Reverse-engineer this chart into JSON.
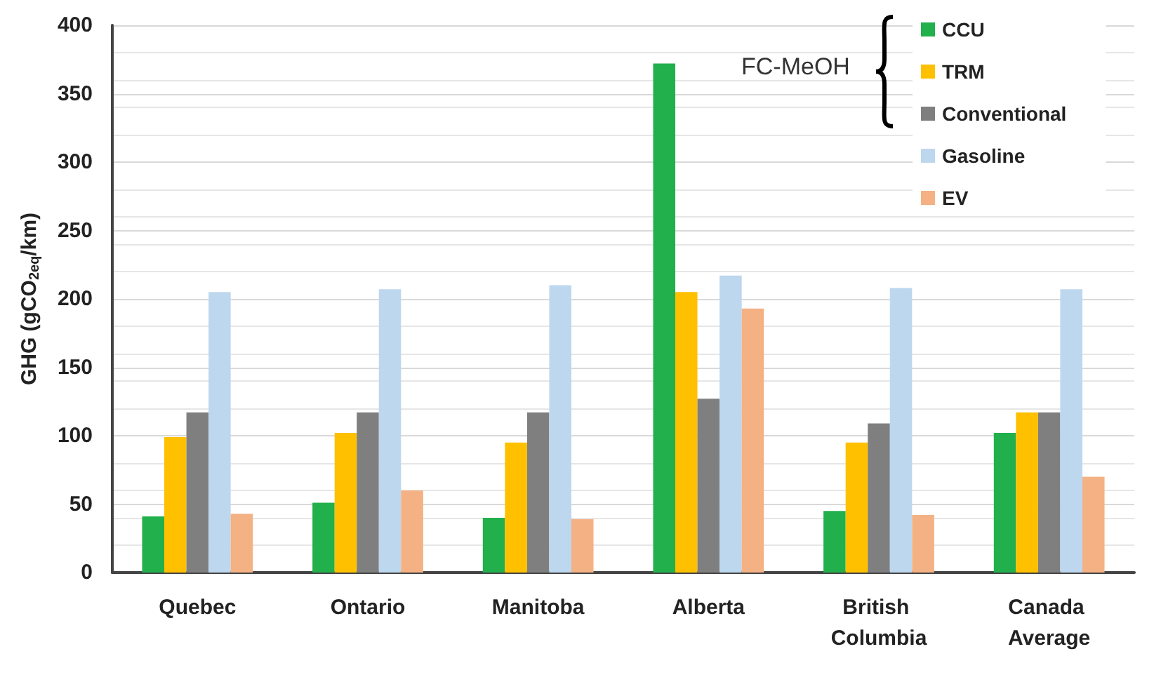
{
  "chart_data": {
    "type": "bar",
    "ylabel": "GHG (gCO$_{2eq}$/km)",
    "categories": [
      "Quebec",
      "Ontario",
      "Manitoba",
      "Alberta",
      "British Columbia",
      "Canada Average"
    ],
    "series": [
      {
        "name": "CCU",
        "color": "#21b04b",
        "values": [
          41,
          51,
          40,
          372,
          45,
          102
        ]
      },
      {
        "name": "TRM",
        "color": "#ffc000",
        "values": [
          99,
          102,
          95,
          205,
          95,
          117
        ]
      },
      {
        "name": "Conventional",
        "color": "#7f7f7f",
        "values": [
          117,
          117,
          117,
          127,
          109,
          117
        ]
      },
      {
        "name": "Gasoline",
        "color": "#bdd7ee",
        "values": [
          205,
          207,
          210,
          217,
          208,
          207
        ]
      },
      {
        "name": "EV",
        "color": "#f4b183",
        "values": [
          43,
          60,
          39,
          193,
          42,
          70
        ]
      }
    ],
    "ylim": [
      0,
      400
    ],
    "yticks": [
      0,
      50,
      100,
      150,
      200,
      250,
      300,
      350,
      400
    ],
    "grid": "y",
    "legend": "top right",
    "annotations": [
      "FC-MeOH"
    ]
  }
}
